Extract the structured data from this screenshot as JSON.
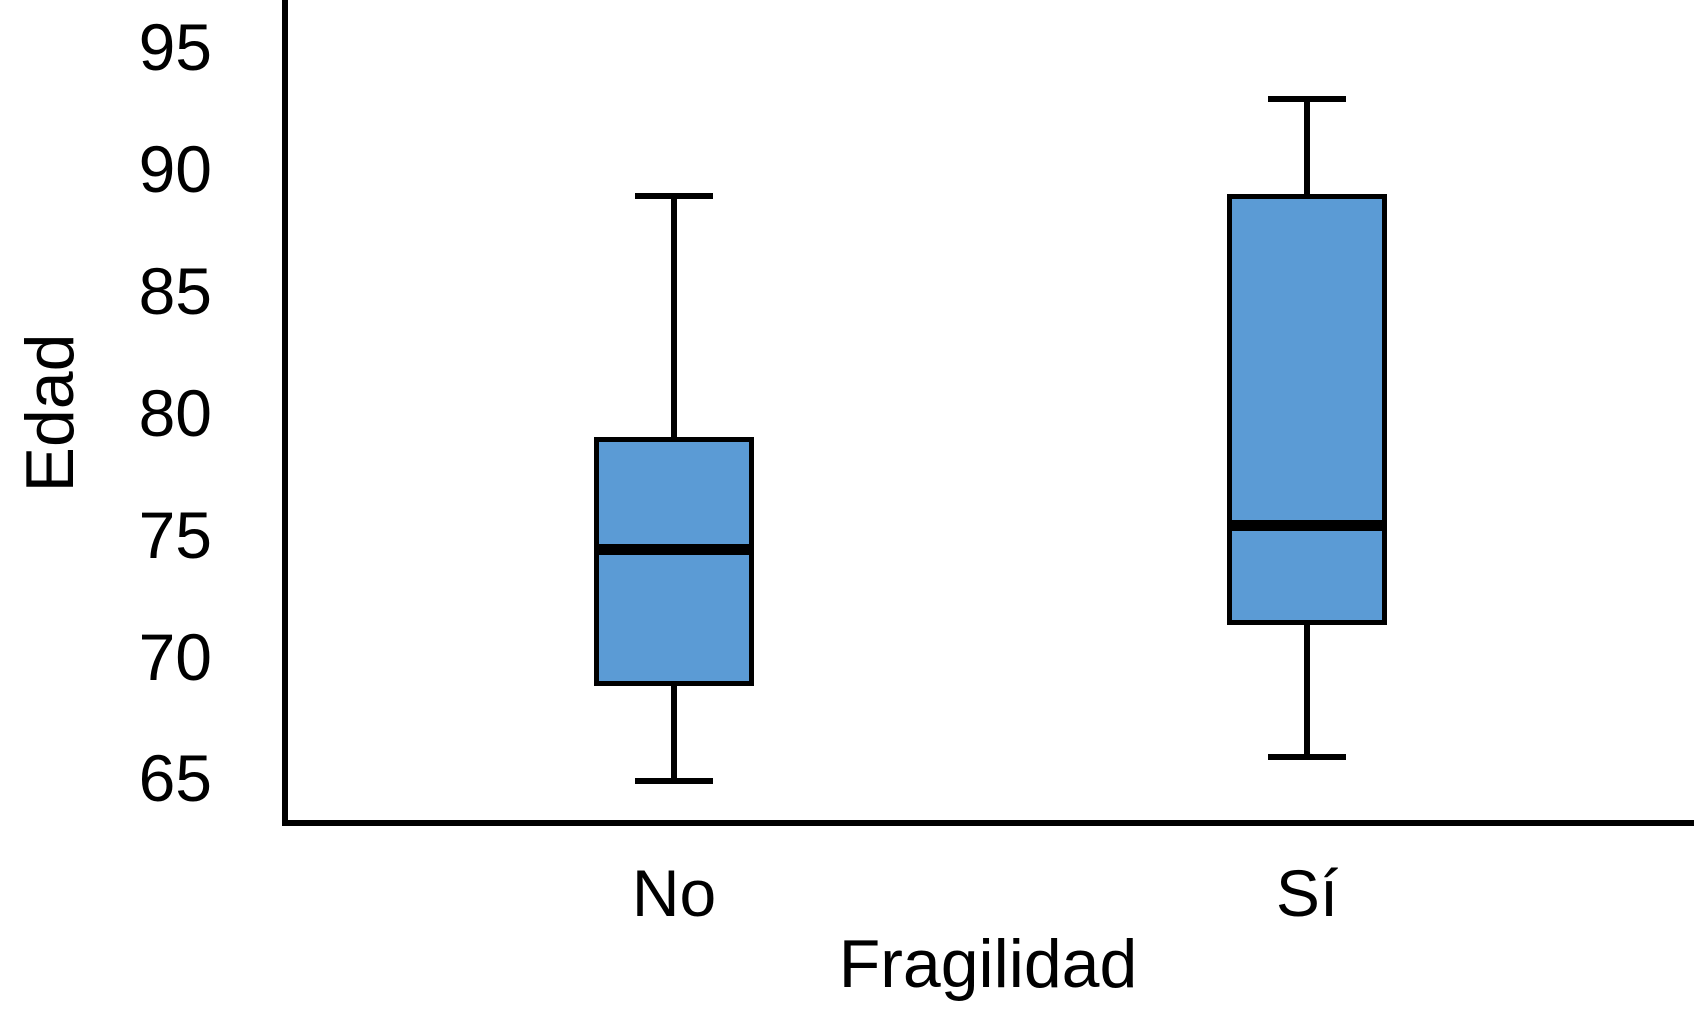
{
  "chart_data": {
    "type": "boxplot",
    "title": "",
    "xlabel": "Fragilidad",
    "ylabel": "Edad",
    "categories": [
      "No",
      "Sí"
    ],
    "y_ticks": [
      95,
      90,
      85,
      80,
      75,
      70,
      65
    ],
    "y_axis_visible_range": [
      63.3,
      97.1
    ],
    "grid": false,
    "legend": false,
    "box_fill_color": "#5b9bd5",
    "line_color": "#000000",
    "background_color": "#ffffff",
    "series": [
      {
        "category": "No",
        "whisker_low": 65,
        "q1": 69,
        "median": 74.5,
        "q3": 79,
        "whisker_high": 89
      },
      {
        "category": "Sí",
        "whisker_low": 66,
        "q1": 71.5,
        "median": 75.5,
        "q3": 89,
        "whisker_high": 93
      }
    ]
  }
}
